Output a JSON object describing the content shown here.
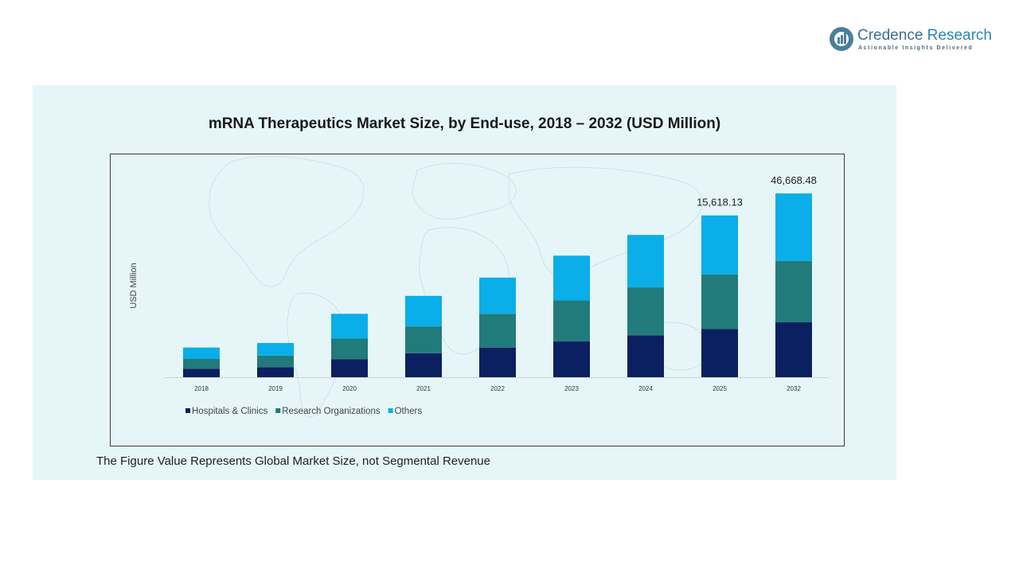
{
  "brand": {
    "name_part1": "Credence",
    "name_part2": " Research",
    "tagline": "Actionable Insights Delivered",
    "colors": {
      "name": "#3a6f8f",
      "accent": "#2b86b8",
      "mark": "#4a7f9b"
    },
    "icon": "credence-logo-icon"
  },
  "chart_data": {
    "type": "bar",
    "stacked": true,
    "title": "mRNA Therapeutics Market Size, by End-use, 2018 – 2032 (USD Million)",
    "ylabel": "USD Million",
    "xlabel": "",
    "categories": [
      "2018",
      "2019",
      "2020",
      "2021",
      "2022",
      "2023",
      "2024",
      "2025",
      "2032"
    ],
    "series": [
      {
        "name": "Hospitals & Clinics",
        "color": "#0b2060",
        "values": [
          1050,
          1240,
          2200,
          2950,
          3650,
          4400,
          5150,
          5950,
          6750
        ]
      },
      {
        "name": "Research Organizations",
        "color": "#217b7b",
        "values": [
          1200,
          1420,
          2550,
          3300,
          4150,
          5050,
          5900,
          6700,
          7550
        ]
      },
      {
        "name": "Others",
        "color": "#0aaee9",
        "values": [
          1400,
          1550,
          3050,
          3750,
          4450,
          5500,
          6450,
          7250,
          8300
        ]
      }
    ],
    "data_labels": [
      {
        "category": "2025",
        "text": "15,618.13"
      },
      {
        "category": "2032",
        "text": "46,668.48"
      }
    ],
    "ylim": [
      0,
      23000
    ],
    "grid": false,
    "legend": "bottom-left",
    "note": "The Figure Value Represents Global Market Size, not Segmental Revenue"
  }
}
